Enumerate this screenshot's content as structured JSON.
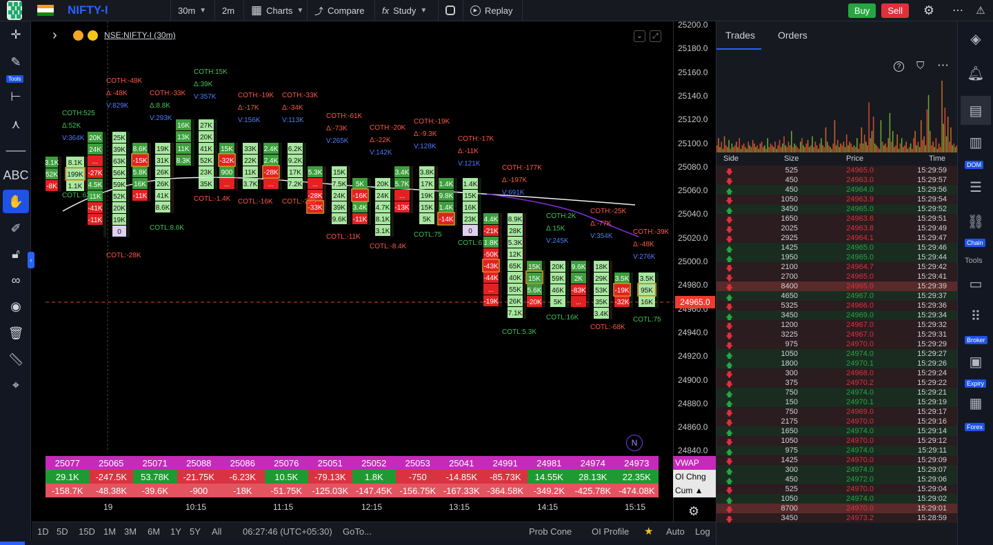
{
  "topbar": {
    "symbol": "NIFTY-I",
    "interval": "30m",
    "interval2": "2m",
    "charts_label": "Charts",
    "compare_label": "Compare",
    "study_label": "Study",
    "replay_label": "Replay",
    "buy_label": "Buy",
    "sell_label": "Sell"
  },
  "left_toolbar": {
    "tools_badge": "Tools"
  },
  "chart": {
    "symbol_label": "NSE:NIFTY-I (30m)",
    "price_axis": [
      "25200.0",
      "25180.0",
      "25160.0",
      "25140.0",
      "25120.0",
      "25100.0",
      "25080.0",
      "25060.0",
      "25040.0",
      "25020.0",
      "25000.0",
      "24980.0",
      "24960.0",
      "24940.0",
      "24920.0",
      "24900.0",
      "24880.0",
      "24860.0",
      "24840.0"
    ],
    "current_price": "24965.0",
    "time_axis": [
      "19",
      "10:15",
      "11:15",
      "12:15",
      "13:15",
      "14:15",
      "15:15"
    ],
    "n_badge": "N",
    "annotations": [
      {
        "t": "COTH:525",
        "c": "#46c35a"
      },
      {
        "t": "Δ:52K",
        "c": "#46c35a"
      },
      {
        "t": "V:364K",
        "c": "#4f7cff"
      },
      {
        "t": "COTL:63K",
        "c": "#46c35a"
      },
      {
        "t": "COTH:-48K",
        "c": "#ff5a4a"
      },
      {
        "t": "Δ:-48K",
        "c": "#ff5a4a"
      },
      {
        "t": "V:829K",
        "c": "#4f7cff"
      },
      {
        "t": "COTL:-28K",
        "c": "#ff5a4a"
      },
      {
        "t": "COTH:-33K",
        "c": "#ff5a4a"
      },
      {
        "t": "Δ:8.8K",
        "c": "#46c35a"
      },
      {
        "t": "V:293K",
        "c": "#4f7cff"
      },
      {
        "t": "COTL:8.6K",
        "c": "#46c35a"
      },
      {
        "t": "COTH:15K",
        "c": "#46c35a"
      },
      {
        "t": "Δ:39K",
        "c": "#46c35a"
      },
      {
        "t": "V:357K",
        "c": "#4f7cff"
      },
      {
        "t": "COTL:-1.4K",
        "c": "#ff5a4a"
      },
      {
        "t": "COTH:-19K",
        "c": "#ff5a4a"
      },
      {
        "t": "Δ:-17K",
        "c": "#ff5a4a"
      },
      {
        "t": "V:156K",
        "c": "#4f7cff"
      },
      {
        "t": "COTL:-16K",
        "c": "#ff5a4a"
      },
      {
        "t": "COTH:-33K",
        "c": "#ff5a4a"
      },
      {
        "t": "Δ:-34K",
        "c": "#ff5a4a"
      },
      {
        "t": "V:113K",
        "c": "#4f7cff"
      },
      {
        "t": "COTL:-225",
        "c": "#ff5a4a"
      },
      {
        "t": "COTH:-61K",
        "c": "#ff5a4a"
      },
      {
        "t": "Δ:-73K",
        "c": "#ff5a4a"
      },
      {
        "t": "V:265K",
        "c": "#4f7cff"
      },
      {
        "t": "COTL:-11K",
        "c": "#ff5a4a"
      },
      {
        "t": "COTH:-20K",
        "c": "#ff5a4a"
      },
      {
        "t": "Δ:-22K",
        "c": "#ff5a4a"
      },
      {
        "t": "V:142K",
        "c": "#4f7cff"
      },
      {
        "t": "COTL:-8.4K",
        "c": "#ff5a4a"
      },
      {
        "t": "COTH:-19K",
        "c": "#ff5a4a"
      },
      {
        "t": "Δ:-9.3K",
        "c": "#ff5a4a"
      },
      {
        "t": "V:128K",
        "c": "#4f7cff"
      },
      {
        "t": "COTL:75",
        "c": "#46c35a"
      },
      {
        "t": "COTH:-17K",
        "c": "#ff5a4a"
      },
      {
        "t": "Δ:-11K",
        "c": "#ff5a4a"
      },
      {
        "t": "V:121K",
        "c": "#4f7cff"
      },
      {
        "t": "COTL:675",
        "c": "#46c35a"
      },
      {
        "t": "COTH:-177K",
        "c": "#ff5a4a"
      },
      {
        "t": "Δ:-197K",
        "c": "#ff5a4a"
      },
      {
        "t": "V:691K",
        "c": "#4f7cff"
      },
      {
        "t": "COTL:5.3K",
        "c": "#46c35a"
      },
      {
        "t": "COTH:2K",
        "c": "#46c35a"
      },
      {
        "t": "Δ:15K",
        "c": "#46c35a"
      },
      {
        "t": "V:245K",
        "c": "#4f7cff"
      },
      {
        "t": "COTL:16K",
        "c": "#46c35a"
      },
      {
        "t": "COTH:-25K",
        "c": "#ff5a4a"
      },
      {
        "t": "Δ:-77K",
        "c": "#ff5a4a"
      },
      {
        "t": "V:354K",
        "c": "#4f7cff"
      },
      {
        "t": "COTL:-68K",
        "c": "#ff5a4a"
      },
      {
        "t": "COTH:-39K",
        "c": "#ff5a4a"
      },
      {
        "t": "Δ:-48K",
        "c": "#ff5a4a"
      },
      {
        "t": "V:276K",
        "c": "#4f7cff"
      },
      {
        "t": "COTL:75",
        "c": "#46c35a"
      }
    ],
    "footprint_cells": [
      [
        "3.1K",
        "52K",
        "-8K",
        "",
        "",
        "",
        "",
        "",
        ""
      ],
      [
        "8.1K",
        "199K",
        "1.1K",
        "",
        "",
        "",
        "",
        "",
        ""
      ],
      [
        "20K",
        "24K",
        "...",
        "-27K",
        "4.5K",
        "11K",
        "-41K",
        "-11K",
        ""
      ],
      [
        "25K",
        "39K",
        "63K",
        "56K",
        "59K",
        "52K",
        "20K",
        "19K",
        "0"
      ],
      [
        "8.6K",
        "-15K",
        "5.8K",
        "16K",
        "-11K",
        "",
        "",
        "",
        ""
      ],
      [
        "19K",
        "31K",
        "26K",
        "26K",
        "41K",
        "8.6K",
        "",
        "",
        ""
      ],
      [
        "16K",
        "13K",
        "11K",
        "8.3K",
        "",
        "",
        "",
        "",
        ""
      ],
      [
        "27K",
        "20K",
        "41K",
        "52K",
        "23K",
        "35K",
        "",
        "",
        ""
      ],
      [
        "15K",
        "-32K",
        "900",
        "...",
        "",
        "",
        "",
        "",
        ""
      ],
      [
        "33K",
        "22K",
        "11K",
        "3.7K",
        "",
        "",
        "",
        "",
        ""
      ],
      [
        "2.4K",
        "2.4K",
        "-28K",
        "...",
        "",
        "",
        "",
        "",
        ""
      ],
      [
        "6.2K",
        "9.2K",
        "17K",
        "7.2K",
        "",
        "",
        "",
        "",
        ""
      ],
      [
        "5.3K",
        "...",
        "-28K",
        "-33K",
        "",
        "",
        "",
        "",
        ""
      ],
      [
        "15K",
        "7.5K",
        "24K",
        "39K",
        "9.6K",
        "",
        "",
        "",
        ""
      ],
      [
        "5K",
        "-16K",
        "3.4K",
        "-11K",
        "",
        "",
        "",
        "",
        ""
      ],
      [
        "20K",
        "24K",
        "4.7K",
        "8.1K",
        "3.1K",
        "",
        "",
        "",
        ""
      ],
      [
        "3.4K",
        "5.7K",
        "...",
        "-13K",
        "",
        "",
        "",
        "",
        ""
      ],
      [
        "3.8K",
        "17K",
        "19K",
        "15K",
        "5K",
        "",
        "",
        "",
        ""
      ],
      [
        "1.4K",
        "9.8K",
        "1.4K",
        "-14K",
        "",
        "",
        "",
        "",
        ""
      ],
      [
        "1.4K",
        "15K",
        "16K",
        "23K",
        "0",
        "",
        "",
        "",
        ""
      ],
      [
        "4.4K",
        "-21K",
        "1.8K",
        "-50K",
        "-43K",
        "-44K",
        "...",
        "-19K",
        ""
      ],
      [
        "8.9K",
        "28K",
        "5.3K",
        "12K",
        "65K",
        "40K",
        "55K",
        "26K",
        "7.1K"
      ],
      [
        "15K",
        "15K",
        "5.6K",
        "-20K",
        "",
        "",
        "",
        "",
        ""
      ],
      [
        "20K",
        "59K",
        "46K",
        "5K",
        "",
        "",
        "",
        "",
        ""
      ],
      [
        "9.6K",
        "2K",
        "-83K",
        "...",
        "",
        "",
        "",
        "",
        ""
      ],
      [
        "18K",
        "29K",
        "53K",
        "35K",
        "3.4K",
        "",
        "",
        "",
        ""
      ],
      [
        "3.5K",
        "-19K",
        "-32K",
        "",
        "",
        "",
        "",
        "",
        ""
      ],
      [
        "3.5K",
        "95K",
        "16K",
        "",
        "",
        "",
        "",
        "",
        ""
      ]
    ],
    "table": {
      "vwap": [
        "25077",
        "25065",
        "25071",
        "25088",
        "25086",
        "25076",
        "25051",
        "25052",
        "25053",
        "25041",
        "24991",
        "24981",
        "24974",
        "24973"
      ],
      "oi_chng": [
        "29.1K",
        "-247.5K",
        "53.78K",
        "-21.75K",
        "-6.23K",
        "10.5K",
        "-79.13K",
        "1.8K",
        "-750",
        "-14.85K",
        "-85.73K",
        "14.55K",
        "28.13K",
        "22.35K"
      ],
      "cum": [
        "-158.7K",
        "-48.38K",
        "-39.6K",
        "-900",
        "-18K",
        "-51.75K",
        "-125.03K",
        "-147.45K",
        "-156.75K",
        "-167.33K",
        "-364.58K",
        "-349.2K",
        "-425.78K",
        "-474.08K"
      ],
      "row_labels": {
        "vwap": "VWAP",
        "oi": "OI Chng",
        "cum": "Cum ▲"
      }
    }
  },
  "bottombar": {
    "ranges": [
      "1D",
      "5D",
      "15D",
      "1M",
      "3M",
      "6M",
      "1Y",
      "5Y",
      "All"
    ],
    "clock": "06:27:46 (UTC+05:30)",
    "goto": "GoTo...",
    "prob_cone": "Prob Cone",
    "oi_profile": "OI Profile",
    "auto": "Auto",
    "log": "Log"
  },
  "rightpanel": {
    "tabs": [
      "Trades",
      "Orders"
    ],
    "headers": {
      "side": "Side",
      "size": "Size",
      "price": "Price",
      "time": "Time"
    },
    "histogram": [
      4,
      8,
      3,
      6,
      2,
      9,
      4,
      3,
      7,
      2,
      5,
      3,
      4,
      6,
      3,
      8,
      2,
      4,
      5,
      3,
      2,
      6,
      4,
      3,
      7,
      5,
      3,
      4,
      2,
      5,
      6,
      3,
      4,
      2,
      8,
      3,
      5,
      4,
      3,
      6,
      2,
      4,
      7,
      3,
      5,
      9,
      4,
      3,
      6,
      4,
      12,
      3,
      5,
      4,
      3,
      2,
      6,
      8,
      4,
      3,
      5,
      7,
      3,
      4,
      9,
      3,
      6,
      4,
      2,
      5,
      8,
      4,
      3,
      14,
      6,
      4,
      3,
      2,
      5,
      18,
      4,
      7,
      3,
      5,
      4,
      6,
      3,
      10,
      4,
      6,
      5,
      3,
      4,
      3,
      8,
      2,
      5,
      14,
      5,
      10,
      6,
      4,
      28,
      8,
      12,
      20,
      5,
      4,
      3,
      2,
      18,
      6,
      4,
      5,
      3,
      8,
      22,
      6,
      12,
      3,
      4,
      10,
      2,
      5,
      8,
      3,
      4,
      6,
      2,
      3,
      5,
      2,
      8,
      12,
      4,
      6,
      3,
      18,
      7,
      9,
      4,
      24,
      32,
      12,
      4,
      6,
      3,
      8,
      2,
      5,
      3,
      40,
      16,
      25,
      9,
      20,
      6,
      14,
      4,
      5,
      3,
      4
    ],
    "trades": [
      {
        "side": "down",
        "size": "525",
        "price": "24965.0",
        "time": "15:29:59"
      },
      {
        "side": "down",
        "size": "450",
        "price": "24963.0",
        "time": "15:29:57"
      },
      {
        "side": "up",
        "size": "450",
        "price": "24964.0",
        "time": "15:29:56"
      },
      {
        "side": "down",
        "size": "1050",
        "price": "24963.9",
        "time": "15:29:54"
      },
      {
        "side": "up",
        "size": "3450",
        "price": "24965.0",
        "time": "15:29:52"
      },
      {
        "side": "down",
        "size": "1650",
        "price": "24963.6",
        "time": "15:29:51"
      },
      {
        "side": "down",
        "size": "2025",
        "price": "24963.8",
        "time": "15:29:49"
      },
      {
        "side": "down",
        "size": "2925",
        "price": "24964.1",
        "time": "15:29:47"
      },
      {
        "side": "up",
        "size": "1425",
        "price": "24965.0",
        "time": "15:29:46"
      },
      {
        "side": "up",
        "size": "1950",
        "price": "24965.0",
        "time": "15:29:44"
      },
      {
        "side": "down",
        "size": "2100",
        "price": "24964.7",
        "time": "15:29:42"
      },
      {
        "side": "down",
        "size": "2700",
        "price": "24965.0",
        "time": "15:29:41"
      },
      {
        "side": "down",
        "size": "8400",
        "price": "24965.0",
        "time": "15:29:39",
        "hl": true
      },
      {
        "side": "up",
        "size": "4650",
        "price": "24967.0",
        "time": "15:29:37"
      },
      {
        "side": "down",
        "size": "5325",
        "price": "24966.0",
        "time": "15:29:36"
      },
      {
        "side": "up",
        "size": "3450",
        "price": "24969.0",
        "time": "15:29:34"
      },
      {
        "side": "down",
        "size": "1200",
        "price": "24967.0",
        "time": "15:29:32"
      },
      {
        "side": "down",
        "size": "3225",
        "price": "24967.0",
        "time": "15:29:31"
      },
      {
        "side": "down",
        "size": "975",
        "price": "24970.0",
        "time": "15:29:29"
      },
      {
        "side": "up",
        "size": "1050",
        "price": "24974.0",
        "time": "15:29:27"
      },
      {
        "side": "up",
        "size": "1800",
        "price": "24970.1",
        "time": "15:29:26"
      },
      {
        "side": "down",
        "size": "300",
        "price": "24968.0",
        "time": "15:29:24"
      },
      {
        "side": "down",
        "size": "375",
        "price": "24970.2",
        "time": "15:29:22"
      },
      {
        "side": "up",
        "size": "750",
        "price": "24974.0",
        "time": "15:29:21"
      },
      {
        "side": "up",
        "size": "150",
        "price": "24970.1",
        "time": "15:29:19"
      },
      {
        "side": "down",
        "size": "750",
        "price": "24969.0",
        "time": "15:29:17"
      },
      {
        "side": "down",
        "size": "2175",
        "price": "24970.0",
        "time": "15:29:16"
      },
      {
        "side": "up",
        "size": "1650",
        "price": "24974.0",
        "time": "15:29:14"
      },
      {
        "side": "down",
        "size": "1050",
        "price": "24970.0",
        "time": "15:29:12"
      },
      {
        "side": "up",
        "size": "975",
        "price": "24974.0",
        "time": "15:29:11"
      },
      {
        "side": "down",
        "size": "1425",
        "price": "24970.0",
        "time": "15:29:09"
      },
      {
        "side": "up",
        "size": "300",
        "price": "24974.0",
        "time": "15:29:07"
      },
      {
        "side": "up",
        "size": "450",
        "price": "24972.0",
        "time": "15:29:06"
      },
      {
        "side": "down",
        "size": "525",
        "price": "24970.0",
        "time": "15:29:04"
      },
      {
        "side": "up",
        "size": "1050",
        "price": "24974.0",
        "time": "15:29:02"
      },
      {
        "side": "down",
        "size": "8700",
        "price": "24970.0",
        "time": "15:29:01",
        "hl": true
      },
      {
        "side": "down",
        "size": "3450",
        "price": "24973.2",
        "time": "15:28:59"
      }
    ]
  },
  "farright": {
    "dom": "DOM",
    "chain": "Chain",
    "tools": "Tools",
    "broker": "Broker",
    "expiry": "Expiry",
    "forex": "Forex"
  },
  "colors": {
    "up": "#26a642",
    "down": "#e0303c",
    "accent": "#2962ff",
    "buy": "#26a642",
    "sell": "#e0303c"
  }
}
